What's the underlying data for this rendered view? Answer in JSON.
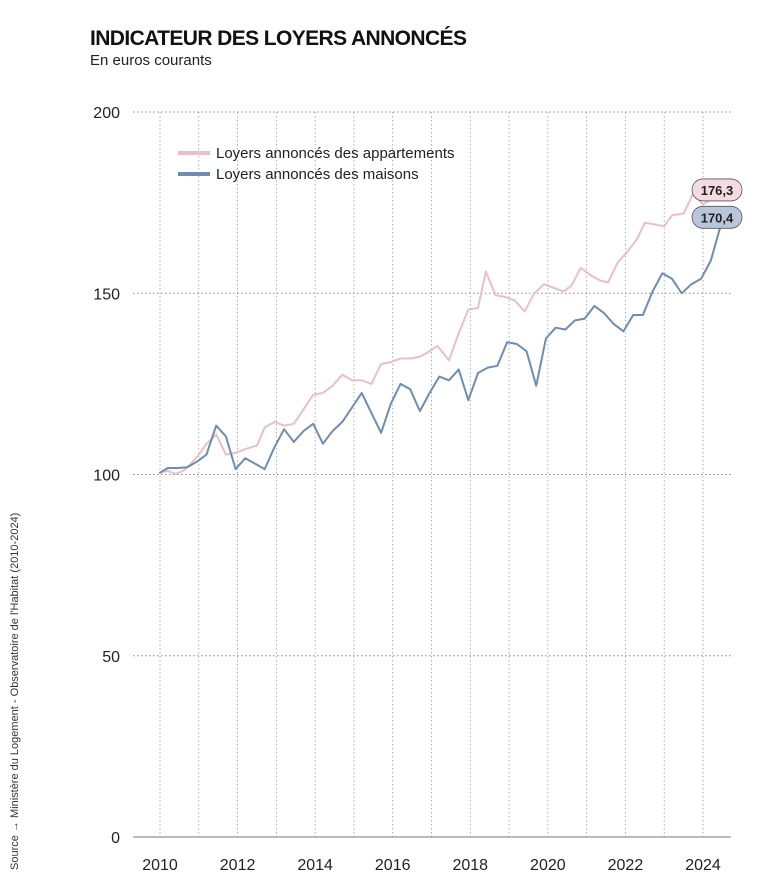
{
  "chart_data": {
    "type": "line",
    "title": "INDICATEUR DES LOYERS ANNONCÉS",
    "subtitle": "En euros courants",
    "source": "Source → Ministère du Logement - Observatoire de l'Habitat (2010-2024)",
    "ylim": [
      0,
      200
    ],
    "yticks": [
      0,
      50,
      100,
      150,
      200
    ],
    "xlim": [
      2010,
      2024.7
    ],
    "xticks": [
      2010,
      2012,
      2014,
      2016,
      2018,
      2020,
      2022,
      2024
    ],
    "legend_position": "top-left",
    "grid": true,
    "series": [
      {
        "name": "Loyers annoncés des appartements",
        "color": "#e8bfcb",
        "end_label": "176,3",
        "label_bg": "#f4dbe2",
        "points": [
          [
            2010.0,
            100.5
          ],
          [
            2010.2,
            101.0
          ],
          [
            2010.4,
            100.2
          ],
          [
            2010.6,
            101.0
          ],
          [
            2010.8,
            103.0
          ],
          [
            2011.0,
            105.5
          ],
          [
            2011.2,
            108.5
          ],
          [
            2011.45,
            111.0
          ],
          [
            2011.7,
            105.5
          ],
          [
            2011.95,
            106.0
          ],
          [
            2012.2,
            107.0
          ],
          [
            2012.5,
            108.0
          ],
          [
            2012.7,
            113.0
          ],
          [
            2012.95,
            114.5
          ],
          [
            2013.2,
            113.5
          ],
          [
            2013.45,
            114.0
          ],
          [
            2013.7,
            118.0
          ],
          [
            2013.95,
            122.0
          ],
          [
            2014.2,
            122.5
          ],
          [
            2014.45,
            124.5
          ],
          [
            2014.7,
            127.5
          ],
          [
            2014.95,
            126.0
          ],
          [
            2015.2,
            126.0
          ],
          [
            2015.45,
            125.0
          ],
          [
            2015.7,
            130.5
          ],
          [
            2015.95,
            131.0
          ],
          [
            2016.2,
            132.0
          ],
          [
            2016.45,
            132.0
          ],
          [
            2016.7,
            132.5
          ],
          [
            2016.95,
            134.0
          ],
          [
            2017.15,
            135.5
          ],
          [
            2017.45,
            131.5
          ],
          [
            2017.7,
            139.0
          ],
          [
            2017.95,
            145.5
          ],
          [
            2018.2,
            146.0
          ],
          [
            2018.4,
            156.0
          ],
          [
            2018.65,
            149.5
          ],
          [
            2018.9,
            149.0
          ],
          [
            2019.15,
            148.0
          ],
          [
            2019.4,
            145.0
          ],
          [
            2019.65,
            150.0
          ],
          [
            2019.9,
            152.5
          ],
          [
            2020.15,
            151.5
          ],
          [
            2020.4,
            150.5
          ],
          [
            2020.6,
            152.0
          ],
          [
            2020.85,
            157.0
          ],
          [
            2021.1,
            155.0
          ],
          [
            2021.35,
            153.5
          ],
          [
            2021.55,
            153.0
          ],
          [
            2021.8,
            158.5
          ],
          [
            2022.05,
            161.5
          ],
          [
            2022.3,
            165.0
          ],
          [
            2022.5,
            169.5
          ],
          [
            2022.75,
            169.0
          ],
          [
            2023.0,
            168.5
          ],
          [
            2023.2,
            171.5
          ],
          [
            2023.5,
            172.0
          ],
          [
            2023.75,
            177.5
          ],
          [
            2024.0,
            174.5
          ],
          [
            2024.25,
            176.3
          ]
        ]
      },
      {
        "name": "Loyers annoncés des maisons",
        "color": "#6f8db3",
        "end_label": "170,4",
        "label_bg": "#b8c6dc",
        "points": [
          [
            2010.0,
            100.5
          ],
          [
            2010.2,
            101.8
          ],
          [
            2010.45,
            101.8
          ],
          [
            2010.7,
            102.0
          ],
          [
            2010.95,
            103.5
          ],
          [
            2011.2,
            105.5
          ],
          [
            2011.45,
            113.5
          ],
          [
            2011.7,
            110.5
          ],
          [
            2011.95,
            101.5
          ],
          [
            2012.2,
            104.5
          ],
          [
            2012.45,
            103.0
          ],
          [
            2012.7,
            101.5
          ],
          [
            2012.95,
            107.5
          ],
          [
            2013.2,
            112.5
          ],
          [
            2013.45,
            109.0
          ],
          [
            2013.7,
            112.0
          ],
          [
            2013.95,
            114.0
          ],
          [
            2014.2,
            108.5
          ],
          [
            2014.45,
            112.0
          ],
          [
            2014.7,
            114.5
          ],
          [
            2014.95,
            118.5
          ],
          [
            2015.2,
            122.5
          ],
          [
            2015.45,
            117.0
          ],
          [
            2015.7,
            111.5
          ],
          [
            2015.95,
            119.5
          ],
          [
            2016.2,
            125.0
          ],
          [
            2016.45,
            123.5
          ],
          [
            2016.7,
            117.5
          ],
          [
            2016.95,
            122.5
          ],
          [
            2017.2,
            127.0
          ],
          [
            2017.45,
            126.0
          ],
          [
            2017.7,
            129.0
          ],
          [
            2017.95,
            120.5
          ],
          [
            2018.2,
            128.0
          ],
          [
            2018.45,
            129.5
          ],
          [
            2018.7,
            130.0
          ],
          [
            2018.95,
            136.5
          ],
          [
            2019.2,
            136.0
          ],
          [
            2019.45,
            134.0
          ],
          [
            2019.7,
            124.5
          ],
          [
            2019.95,
            137.5
          ],
          [
            2020.2,
            140.5
          ],
          [
            2020.45,
            140.0
          ],
          [
            2020.7,
            142.5
          ],
          [
            2020.95,
            143.0
          ],
          [
            2021.2,
            146.5
          ],
          [
            2021.45,
            144.5
          ],
          [
            2021.7,
            141.5
          ],
          [
            2021.95,
            139.5
          ],
          [
            2022.2,
            144.0
          ],
          [
            2022.45,
            144.0
          ],
          [
            2022.7,
            150.5
          ],
          [
            2022.95,
            155.5
          ],
          [
            2023.2,
            154.0
          ],
          [
            2023.45,
            150.0
          ],
          [
            2023.7,
            152.5
          ],
          [
            2023.95,
            154.0
          ],
          [
            2024.2,
            159.0
          ],
          [
            2024.45,
            168.5
          ],
          [
            2024.65,
            170.4
          ]
        ]
      }
    ]
  }
}
